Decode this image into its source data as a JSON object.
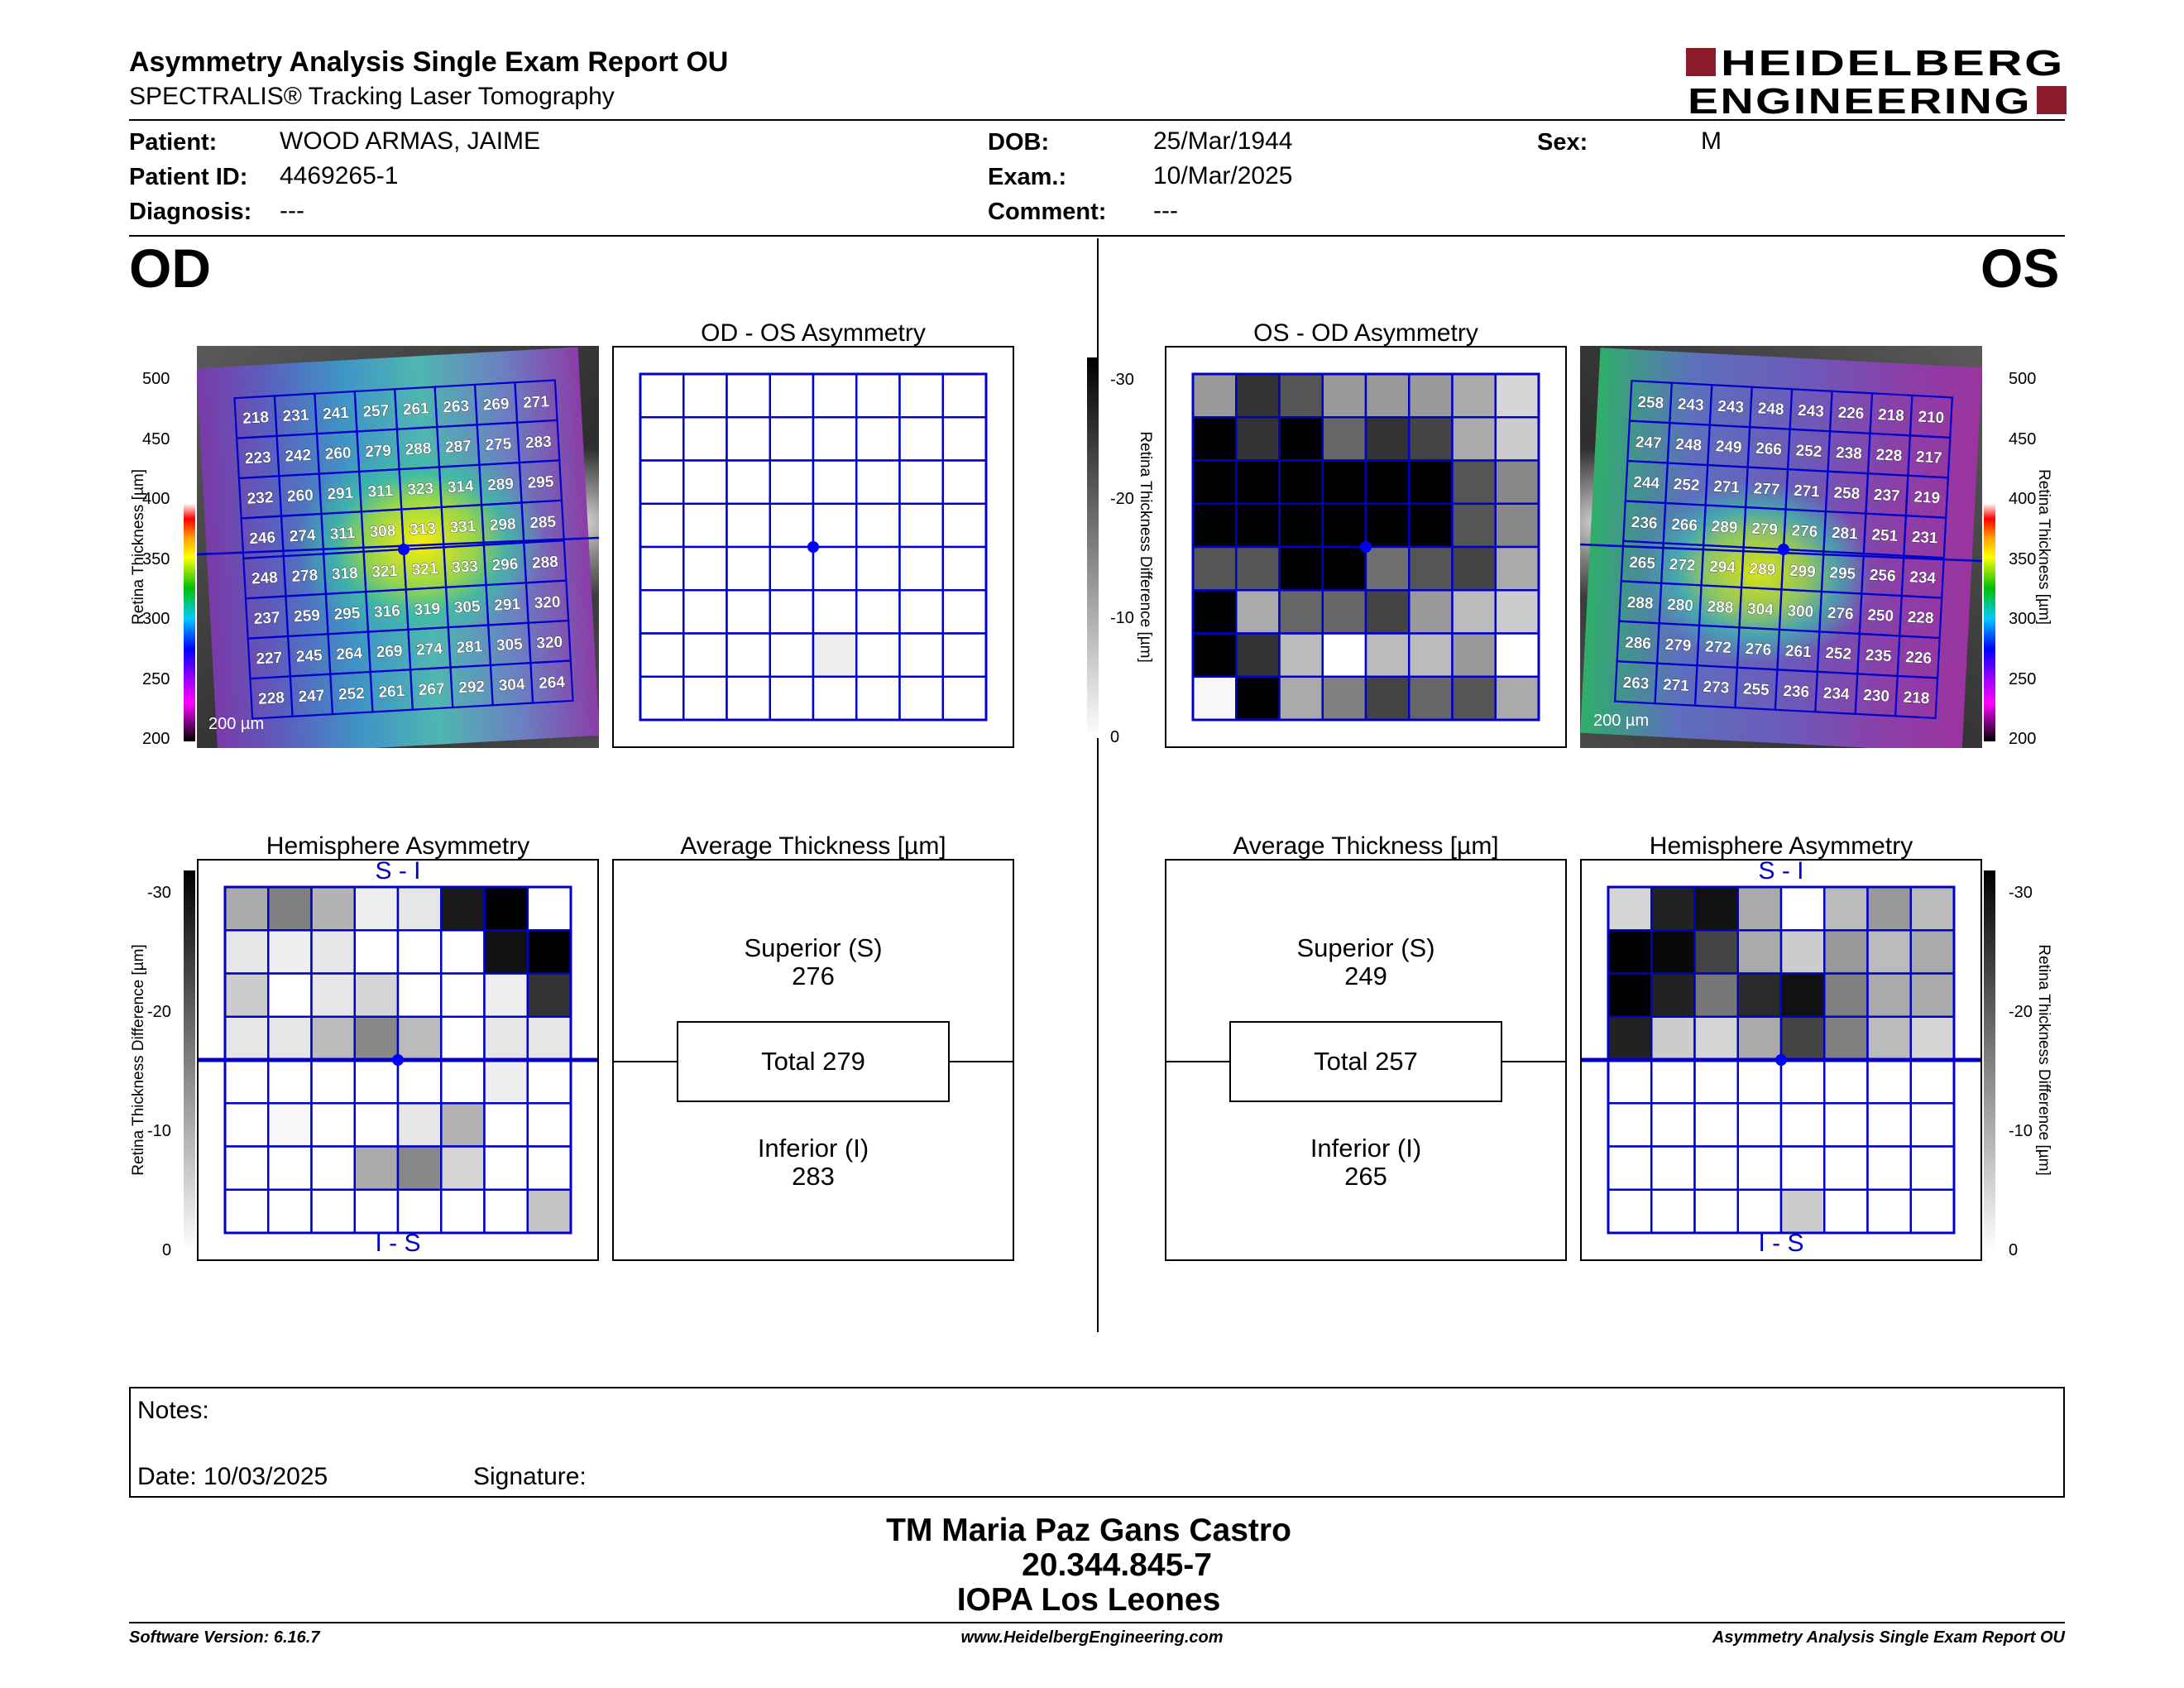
{
  "header": {
    "title": "Asymmetry Analysis Single Exam Report OU",
    "subtitle": "SPECTRALIS® Tracking Laser Tomography",
    "logo_line1": "HEIDELBERG",
    "logo_line2": "ENGINEERING",
    "brand_color": "#8b1a2b"
  },
  "patient": {
    "patient_label": "Patient:",
    "patient_value": "WOOD ARMAS, JAIME",
    "id_label": "Patient ID:",
    "id_value": "4469265-1",
    "diagnosis_label": "Diagnosis:",
    "diagnosis_value": "---",
    "dob_label": "DOB:",
    "dob_value": "25/Mar/1944",
    "exam_label": "Exam.:",
    "exam_value": "10/Mar/2025",
    "comment_label": "Comment:",
    "comment_value": "---",
    "sex_label": "Sex:",
    "sex_value": "M"
  },
  "od": {
    "eye_label": "OD",
    "asym_title": "OD - OS Asymmetry",
    "hemi_title": "Hemisphere Asymmetry",
    "avg_title": "Average Thickness [µm]",
    "scale_bar": "200 µm",
    "hemi_top": "S - I",
    "hemi_bottom": "I - S",
    "superior_label": "Superior (S)",
    "superior_value": "276",
    "total_label": "Total 279",
    "inferior_label": "Inferior (I)",
    "inferior_value": "283",
    "thickness_grid": [
      [
        218,
        231,
        241,
        257,
        261,
        263,
        269,
        271
      ],
      [
        223,
        242,
        260,
        279,
        288,
        287,
        275,
        283
      ],
      [
        232,
        260,
        291,
        311,
        323,
        314,
        289,
        295
      ],
      [
        246,
        274,
        311,
        308,
        313,
        331,
        298,
        285
      ],
      [
        248,
        278,
        318,
        321,
        321,
        333,
        296,
        288
      ],
      [
        237,
        259,
        295,
        316,
        319,
        305,
        291,
        320
      ],
      [
        227,
        245,
        264,
        269,
        274,
        281,
        305,
        320
      ],
      [
        228,
        247,
        252,
        261,
        267,
        292,
        304,
        264
      ]
    ],
    "asym_grid": [
      [
        0,
        0,
        0,
        0,
        0,
        0,
        0,
        0
      ],
      [
        0,
        0,
        0,
        0,
        0,
        0,
        0,
        0
      ],
      [
        0,
        0,
        0,
        0,
        0,
        0,
        0,
        0
      ],
      [
        0,
        0,
        0,
        0,
        0,
        0,
        0,
        0
      ],
      [
        0,
        0,
        0,
        0,
        0,
        0,
        0,
        0
      ],
      [
        0,
        0,
        0,
        0,
        0,
        0,
        0,
        0
      ],
      [
        0,
        0,
        0,
        0,
        2,
        0,
        0,
        0
      ],
      [
        0,
        0,
        0,
        0,
        0,
        0,
        0,
        0
      ]
    ],
    "hemi_grid": [
      [
        10,
        15,
        9,
        2,
        3,
        27,
        30,
        0
      ],
      [
        3,
        2,
        3,
        0,
        0,
        0,
        28,
        30
      ],
      [
        6,
        0,
        3,
        5,
        0,
        0,
        2,
        24
      ],
      [
        3,
        3,
        8,
        14,
        8,
        0,
        3,
        3
      ],
      [
        0,
        0,
        0,
        0,
        0,
        0,
        2,
        0
      ],
      [
        0,
        1,
        0,
        0,
        3,
        9,
        0,
        0
      ],
      [
        0,
        0,
        0,
        10,
        14,
        5,
        0,
        0
      ],
      [
        0,
        0,
        0,
        0,
        0,
        0,
        0,
        7
      ]
    ]
  },
  "os": {
    "eye_label": "OS",
    "asym_title": "OS - OD Asymmetry",
    "hemi_title": "Hemisphere Asymmetry",
    "avg_title": "Average Thickness [µm]",
    "scale_bar": "200 µm",
    "hemi_top": "S - I",
    "hemi_bottom": "I - S",
    "superior_label": "Superior (S)",
    "superior_value": "249",
    "total_label": "Total 257",
    "inferior_label": "Inferior (I)",
    "inferior_value": "265",
    "thickness_grid": [
      [
        258,
        243,
        243,
        248,
        243,
        226,
        218,
        210
      ],
      [
        247,
        248,
        249,
        266,
        252,
        238,
        228,
        217
      ],
      [
        244,
        252,
        271,
        277,
        271,
        258,
        237,
        219
      ],
      [
        236,
        266,
        289,
        279,
        276,
        281,
        251,
        231
      ],
      [
        265,
        272,
        294,
        289,
        299,
        295,
        256,
        234
      ],
      [
        288,
        280,
        288,
        304,
        300,
        276,
        250,
        228
      ],
      [
        286,
        279,
        272,
        276,
        261,
        252,
        235,
        226
      ],
      [
        263,
        271,
        273,
        255,
        236,
        234,
        230,
        218
      ]
    ],
    "asym_grid": [
      [
        12,
        24,
        20,
        12,
        12,
        12,
        10,
        5
      ],
      [
        30,
        24,
        30,
        18,
        24,
        22,
        10,
        6
      ],
      [
        30,
        30,
        30,
        30,
        30,
        30,
        20,
        14
      ],
      [
        30,
        30,
        30,
        30,
        30,
        30,
        20,
        14
      ],
      [
        20,
        20,
        30,
        30,
        17,
        20,
        22,
        10
      ],
      [
        30,
        10,
        18,
        18,
        22,
        12,
        8,
        6
      ],
      [
        30,
        24,
        8,
        0,
        8,
        8,
        12,
        0
      ],
      [
        1,
        30,
        10,
        15,
        22,
        18,
        20,
        10
      ]
    ],
    "hemi_grid": [
      [
        5,
        26,
        28,
        10,
        0,
        8,
        12,
        8
      ],
      [
        30,
        29,
        22,
        10,
        6,
        12,
        8,
        10
      ],
      [
        30,
        26,
        16,
        25,
        28,
        15,
        10,
        10
      ],
      [
        26,
        6,
        5,
        10,
        22,
        15,
        8,
        5
      ],
      [
        0,
        0,
        0,
        0,
        0,
        0,
        0,
        0
      ],
      [
        0,
        0,
        0,
        0,
        0,
        0,
        0,
        0
      ],
      [
        0,
        0,
        0,
        0,
        0,
        0,
        0,
        0
      ],
      [
        0,
        0,
        0,
        0,
        6,
        0,
        0,
        0
      ]
    ]
  },
  "scales": {
    "thickness_title": "Retina Thickness [µm]",
    "thickness_ticks": [
      "500",
      "450",
      "400",
      "350",
      "300",
      "250",
      "200"
    ],
    "diff_title": "Retina Thickness Difference [µm]",
    "diff_ticks": [
      "-30",
      "-20",
      "-10",
      "0"
    ]
  },
  "notes": {
    "notes_label": "Notes:",
    "date_label": "Date: 10/03/2025",
    "signature_label": "Signature:"
  },
  "signer": {
    "name": "TM Maria Paz Gans Castro",
    "id": "20.344.845-7",
    "org": "IOPA Los Leones"
  },
  "footer": {
    "software": "Software Version: 6.16.7",
    "website": "www.HeidelbergEngineering.com",
    "report": "Asymmetry Analysis Single Exam Report OU"
  },
  "colors": {
    "grid_blue": "#0000c8",
    "fovea_blue": "#0000ff"
  }
}
